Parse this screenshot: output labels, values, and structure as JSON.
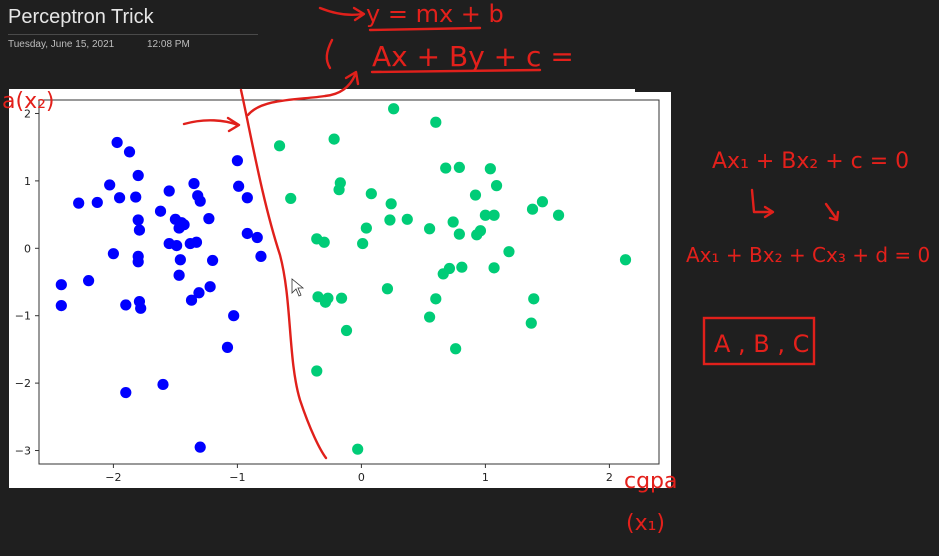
{
  "page": {
    "title": "Perceptron Trick",
    "date": "Tuesday, June 15, 2021",
    "time": "12:08 PM"
  },
  "annotations": {
    "eq1": "y = mx + b",
    "eq2": "Ax + By + c =",
    "eq3": "Ax₁ + Bx₂ + c = 0",
    "eq4": "Ax₁ + Bx₂ + Cx₃ + d = 0",
    "params": "A , B , C",
    "y_axis_note": "a(x₂)",
    "x_axis_note": "cgpa",
    "x_axis_note2": "(x₁)"
  },
  "colors": {
    "class_a": "#0000ff",
    "class_b": "#00cc77",
    "ink": "#e0201b"
  },
  "chart_data": {
    "type": "scatter",
    "xlim": [
      -2.6,
      2.4
    ],
    "ylim": [
      -3.2,
      2.2
    ],
    "x_ticks": [
      -2,
      -1,
      0,
      1,
      2
    ],
    "y_ticks": [
      2,
      1,
      0,
      -1,
      -2,
      -3
    ],
    "x_tick_labels": [
      "−2",
      "−1",
      "0",
      "1",
      "2"
    ],
    "y_tick_labels": [
      "2",
      "1",
      "0",
      "−1",
      "−2",
      "−3"
    ],
    "grid": false,
    "series": [
      {
        "color": "#0000ff",
        "points": [
          [
            -1.97,
            1.57
          ],
          [
            -1.87,
            1.43
          ],
          [
            -1.8,
            1.08
          ],
          [
            -2.03,
            0.94
          ],
          [
            -1.95,
            0.75
          ],
          [
            -1.82,
            0.76
          ],
          [
            -2.13,
            0.68
          ],
          [
            -2.28,
            0.67
          ],
          [
            -1.8,
            0.42
          ],
          [
            -1.79,
            0.27
          ],
          [
            -1.62,
            0.55
          ],
          [
            -1.55,
            0.85
          ],
          [
            -1.5,
            0.43
          ],
          [
            -1.45,
            0.38
          ],
          [
            -1.47,
            0.3
          ],
          [
            -1.43,
            0.35
          ],
          [
            -1.35,
            0.96
          ],
          [
            -1.32,
            0.78
          ],
          [
            -1.3,
            0.7
          ],
          [
            -1.23,
            0.44
          ],
          [
            -1.55,
            0.07
          ],
          [
            -1.49,
            0.04
          ],
          [
            -1.38,
            0.07
          ],
          [
            -1.33,
            0.09
          ],
          [
            -2.0,
            -0.08
          ],
          [
            -1.8,
            -0.12
          ],
          [
            -1.8,
            -0.2
          ],
          [
            -1.46,
            -0.17
          ],
          [
            -1.47,
            -0.4
          ],
          [
            -1.2,
            -0.18
          ],
          [
            -2.42,
            -0.54
          ],
          [
            -2.42,
            -0.85
          ],
          [
            -2.2,
            -0.48
          ],
          [
            -1.9,
            -0.84
          ],
          [
            -1.79,
            -0.79
          ],
          [
            -1.78,
            -0.89
          ],
          [
            -1.31,
            -0.66
          ],
          [
            -1.37,
            -0.77
          ],
          [
            -1.22,
            -0.57
          ],
          [
            -1.03,
            -1.0
          ],
          [
            -1.08,
            -1.47
          ],
          [
            -1.6,
            -2.02
          ],
          [
            -1.9,
            -2.14
          ],
          [
            -1.3,
            -2.95
          ],
          [
            -1.0,
            1.3
          ],
          [
            -0.99,
            0.92
          ],
          [
            -0.92,
            0.75
          ],
          [
            -0.92,
            0.22
          ],
          [
            -0.84,
            0.16
          ],
          [
            -0.81,
            -0.12
          ]
        ]
      },
      {
        "color": "#00cc77",
        "points": [
          [
            -0.66,
            1.52
          ],
          [
            -0.57,
            0.74
          ],
          [
            -0.22,
            1.62
          ],
          [
            -0.17,
            0.97
          ],
          [
            -0.18,
            0.87
          ],
          [
            -0.36,
            0.14
          ],
          [
            -0.3,
            0.09
          ],
          [
            0.26,
            2.07
          ],
          [
            0.6,
            1.87
          ],
          [
            0.08,
            0.81
          ],
          [
            0.24,
            0.66
          ],
          [
            0.37,
            0.43
          ],
          [
            0.23,
            0.42
          ],
          [
            0.04,
            0.3
          ],
          [
            0.55,
            0.29
          ],
          [
            0.01,
            0.07
          ],
          [
            0.68,
            1.19
          ],
          [
            0.74,
            0.39
          ],
          [
            0.79,
            0.21
          ],
          [
            0.79,
            1.2
          ],
          [
            0.92,
            0.79
          ],
          [
            0.96,
            0.26
          ],
          [
            1.0,
            0.49
          ],
          [
            1.07,
            0.49
          ],
          [
            1.04,
            1.18
          ],
          [
            1.09,
            0.93
          ],
          [
            0.93,
            0.2
          ],
          [
            1.19,
            -0.05
          ],
          [
            1.07,
            -0.29
          ],
          [
            1.38,
            0.58
          ],
          [
            1.46,
            0.69
          ],
          [
            1.59,
            0.49
          ],
          [
            0.71,
            -0.3
          ],
          [
            0.81,
            -0.28
          ],
          [
            0.66,
            -0.38
          ],
          [
            0.21,
            -0.6
          ],
          [
            0.6,
            -0.75
          ],
          [
            0.55,
            -1.02
          ],
          [
            1.39,
            -0.75
          ],
          [
            1.37,
            -1.11
          ],
          [
            -0.35,
            -0.72
          ],
          [
            -0.29,
            -0.8
          ],
          [
            -0.27,
            -0.74
          ],
          [
            -0.16,
            -0.74
          ],
          [
            -0.12,
            -1.22
          ],
          [
            -0.36,
            -1.82
          ],
          [
            0.76,
            -1.49
          ],
          [
            -0.03,
            -2.98
          ],
          [
            2.13,
            -0.17
          ]
        ]
      }
    ]
  }
}
